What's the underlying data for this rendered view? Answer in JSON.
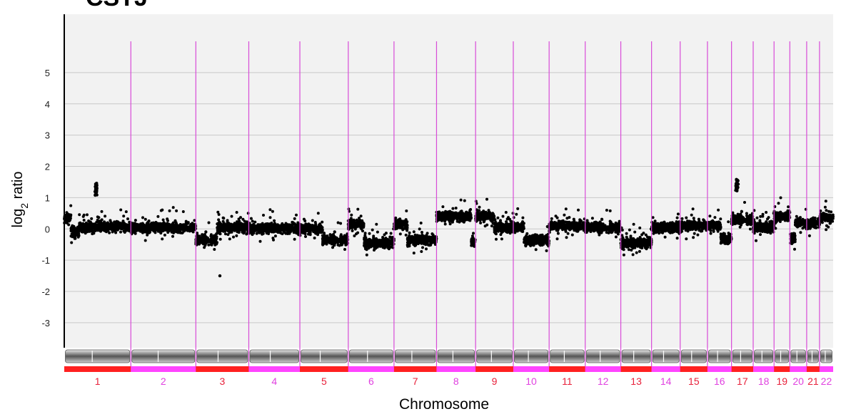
{
  "chart_data": {
    "type": "scatter",
    "title": "CSTJ",
    "xlabel": "Chromosome",
    "ylabel_main": "log",
    "ylabel_sub": "2",
    "ylabel_rest": " ratio",
    "ylim": [
      -3.8,
      6.0
    ],
    "yticks": [
      5,
      4,
      3,
      2,
      1,
      0,
      -1,
      -2,
      -3
    ],
    "grid": true,
    "colors": {
      "point": "#000000",
      "boundary": "#d84bd8",
      "band_odd": "#ff2020",
      "band_even": "#ff44ff",
      "label_odd": "#e8203a",
      "label_even": "#e040e0",
      "grid": "#c8c8c8",
      "plot_bg": "#f2f2f2"
    },
    "chromosomes": [
      {
        "label": "1",
        "start": 0,
        "end": 249,
        "segments": [
          [
            0,
            25,
            0.35
          ],
          [
            25,
            55,
            -0.1
          ],
          [
            55,
            125,
            0.05
          ],
          [
            125,
            249,
            0.08
          ]
        ],
        "extras": [
          [
            115,
            122,
            1.3
          ]
        ]
      },
      {
        "label": "2",
        "start": 249,
        "end": 492,
        "segments": [
          [
            0,
            243,
            0.05
          ]
        ]
      },
      {
        "label": "3",
        "start": 492,
        "end": 690,
        "segments": [
          [
            0,
            80,
            -0.35
          ],
          [
            80,
            198,
            0.05
          ]
        ],
        "extras": [
          [
            90,
            90,
            -1.5
          ]
        ]
      },
      {
        "label": "4",
        "start": 690,
        "end": 881,
        "segments": [
          [
            0,
            191,
            0.02
          ]
        ]
      },
      {
        "label": "5",
        "start": 881,
        "end": 1062,
        "segments": [
          [
            0,
            85,
            0.0
          ],
          [
            85,
            181,
            -0.35
          ]
        ]
      },
      {
        "label": "6",
        "start": 1062,
        "end": 1233,
        "segments": [
          [
            0,
            58,
            0.15
          ],
          [
            58,
            171,
            -0.45
          ]
        ]
      },
      {
        "label": "7",
        "start": 1233,
        "end": 1392,
        "segments": [
          [
            0,
            50,
            0.15
          ],
          [
            50,
            159,
            -0.35
          ]
        ]
      },
      {
        "label": "8",
        "start": 1392,
        "end": 1538,
        "segments": [
          [
            0,
            130,
            0.4
          ],
          [
            130,
            146,
            -0.4
          ]
        ]
      },
      {
        "label": "9",
        "start": 1538,
        "end": 1679,
        "segments": [
          [
            0,
            70,
            0.4
          ],
          [
            70,
            141,
            0.05
          ]
        ]
      },
      {
        "label": "10",
        "start": 1679,
        "end": 1813,
        "segments": [
          [
            0,
            40,
            0.05
          ],
          [
            40,
            134,
            -0.35
          ]
        ]
      },
      {
        "label": "11",
        "start": 1813,
        "end": 1948,
        "segments": [
          [
            0,
            135,
            0.1
          ]
        ]
      },
      {
        "label": "12",
        "start": 1948,
        "end": 2081,
        "segments": [
          [
            0,
            133,
            0.05
          ]
        ]
      },
      {
        "label": "13",
        "start": 2081,
        "end": 2196,
        "segments": [
          [
            0,
            115,
            -0.45
          ]
        ]
      },
      {
        "label": "14",
        "start": 2196,
        "end": 2303,
        "segments": [
          [
            0,
            107,
            0.05
          ]
        ]
      },
      {
        "label": "15",
        "start": 2303,
        "end": 2405,
        "segments": [
          [
            0,
            102,
            0.1
          ]
        ]
      },
      {
        "label": "16",
        "start": 2405,
        "end": 2495,
        "segments": [
          [
            0,
            50,
            0.1
          ],
          [
            50,
            90,
            -0.3
          ]
        ]
      },
      {
        "label": "17",
        "start": 2495,
        "end": 2576,
        "segments": [
          [
            0,
            81,
            0.3
          ]
        ],
        "extras": [
          [
            15,
            25,
            1.4
          ]
        ]
      },
      {
        "label": "18",
        "start": 2576,
        "end": 2654,
        "segments": [
          [
            0,
            78,
            0.05
          ]
        ]
      },
      {
        "label": "19",
        "start": 2654,
        "end": 2713,
        "segments": [
          [
            0,
            59,
            0.4
          ]
        ]
      },
      {
        "label": "20",
        "start": 2713,
        "end": 2776,
        "segments": [
          [
            0,
            20,
            -0.3
          ],
          [
            20,
            63,
            0.2
          ]
        ]
      },
      {
        "label": "21",
        "start": 2776,
        "end": 2824,
        "segments": [
          [
            0,
            48,
            0.2
          ]
        ]
      },
      {
        "label": "22",
        "start": 2824,
        "end": 2875,
        "segments": [
          [
            0,
            51,
            0.35
          ]
        ]
      }
    ]
  }
}
